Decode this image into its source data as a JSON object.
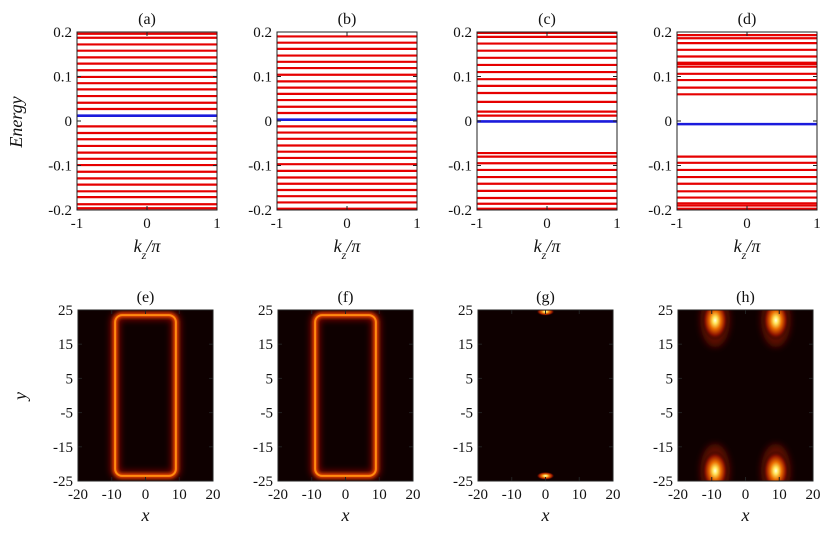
{
  "figure": {
    "ylabel_top": "Energy",
    "ylabel_bottom": "y"
  },
  "chart_data": [
    {
      "type": "line",
      "label": "(a)",
      "xlabel": "k_z/π",
      "xlim": [
        -1,
        1
      ],
      "ylim": [
        -0.2,
        0.2
      ],
      "xticks": [
        -1,
        0,
        1
      ],
      "yticks": [
        -0.2,
        -0.1,
        0,
        0.1,
        0.2
      ],
      "xtick_labels": [
        "-1",
        "0",
        "1"
      ],
      "ytick_labels": [
        "-0.2",
        "-0.1",
        "0",
        "0.1",
        "0.2"
      ],
      "bands_red": [
        -0.196,
        -0.187,
        -0.171,
        -0.158,
        -0.143,
        -0.129,
        -0.114,
        -0.099,
        -0.085,
        -0.071,
        -0.056,
        -0.041,
        -0.027,
        -0.012,
        0.027,
        0.041,
        0.056,
        0.071,
        0.085,
        0.099,
        0.114,
        0.129,
        0.143,
        0.158,
        0.172,
        0.187,
        0.196
      ],
      "bands_blue": [
        0.012
      ]
    },
    {
      "type": "line",
      "label": "(b)",
      "xlabel": "k_z/π",
      "xlim": [
        -1,
        1
      ],
      "ylim": [
        -0.2,
        0.2
      ],
      "xticks": [
        -1,
        0,
        1
      ],
      "yticks": [
        -0.2,
        -0.1,
        0,
        0.1,
        0.2
      ],
      "xtick_labels": [
        "-1",
        "0",
        "1"
      ],
      "ytick_labels": [
        "-0.2",
        "-0.1",
        "0",
        "0.1",
        "0.2"
      ],
      "bands_red": [
        -0.197,
        -0.183,
        -0.169,
        -0.155,
        -0.141,
        -0.127,
        -0.112,
        -0.097,
        -0.083,
        -0.069,
        -0.055,
        -0.04,
        -0.026,
        -0.012,
        0.018,
        0.032,
        0.047,
        0.061,
        0.075,
        0.089,
        0.104,
        0.119,
        0.133,
        0.147,
        0.162,
        0.176,
        0.19
      ],
      "bands_blue": [
        0.003
      ]
    },
    {
      "type": "line",
      "label": "(c)",
      "xlabel": "k_z/π",
      "xlim": [
        -1,
        1
      ],
      "ylim": [
        -0.2,
        0.2
      ],
      "xticks": [
        -1,
        0,
        1
      ],
      "yticks": [
        -0.2,
        -0.1,
        0,
        0.1,
        0.2
      ],
      "xtick_labels": [
        "-1",
        "0",
        "1"
      ],
      "ytick_labels": [
        "-0.2",
        "-0.1",
        "0",
        "0.1",
        "0.2"
      ],
      "bands_red": [
        -0.197,
        -0.186,
        -0.173,
        -0.157,
        -0.141,
        -0.126,
        -0.11,
        -0.095,
        -0.08,
        -0.072,
        0.012,
        0.021,
        0.043,
        0.063,
        0.079,
        0.094,
        0.11,
        0.126,
        0.142,
        0.158,
        0.174,
        0.189,
        0.198
      ],
      "bands_blue": [
        -0.001
      ]
    },
    {
      "type": "line",
      "label": "(d)",
      "xlabel": "k_z/π",
      "xlim": [
        -1,
        1
      ],
      "ylim": [
        -0.2,
        0.2
      ],
      "xticks": [
        -1,
        0,
        1
      ],
      "yticks": [
        -0.2,
        -0.1,
        0,
        0.1,
        0.2
      ],
      "xtick_labels": [
        "-1",
        "0",
        "1"
      ],
      "ytick_labels": [
        "-0.2",
        "-0.1",
        "0",
        "0.1",
        "0.2"
      ],
      "bands_red": [
        -0.197,
        -0.19,
        -0.185,
        -0.172,
        -0.158,
        -0.141,
        -0.126,
        -0.11,
        -0.094,
        -0.08,
        0.06,
        0.075,
        0.092,
        0.106,
        0.122,
        0.128,
        0.131,
        0.145,
        0.16,
        0.175,
        0.186,
        0.193
      ],
      "bands_blue": [
        -0.007
      ]
    },
    {
      "type": "heatmap",
      "label": "(e)",
      "xlabel": "x",
      "xlim": [
        -20,
        20
      ],
      "ylim": [
        -25,
        25
      ],
      "xticks": [
        -20,
        -10,
        0,
        10,
        20
      ],
      "yticks": [
        -25,
        -15,
        -5,
        5,
        15,
        25
      ],
      "xtick_labels": [
        "-20",
        "-10",
        "0",
        "10",
        "20"
      ],
      "ytick_labels": [
        "-25",
        "-15",
        "-5",
        "5",
        "15",
        "25"
      ],
      "distribution": "rectangular edge loop",
      "edge_x": 9,
      "edge_y": 23.5
    },
    {
      "type": "heatmap",
      "label": "(f)",
      "xlabel": "x",
      "xlim": [
        -20,
        20
      ],
      "ylim": [
        -25,
        25
      ],
      "xticks": [
        -20,
        -10,
        0,
        10,
        20
      ],
      "yticks": [
        -25,
        -15,
        -5,
        5,
        15,
        25
      ],
      "xtick_labels": [
        "-20",
        "-10",
        "0",
        "10",
        "20"
      ],
      "ytick_labels": [
        "-25",
        "-15",
        "-5",
        "5",
        "15",
        "25"
      ],
      "distribution": "rectangular edge loop",
      "edge_x": 9,
      "edge_y": 23.5
    },
    {
      "type": "heatmap",
      "label": "(g)",
      "xlabel": "x",
      "xlim": [
        -20,
        20
      ],
      "ylim": [
        -25,
        25
      ],
      "xticks": [
        -20,
        -10,
        0,
        10,
        20
      ],
      "yticks": [
        -25,
        -15,
        -5,
        5,
        15,
        25
      ],
      "xtick_labels": [
        "-20",
        "-10",
        "0",
        "10",
        "20"
      ],
      "ytick_labels": [
        "-25",
        "-15",
        "-5",
        "5",
        "15",
        "25"
      ],
      "distribution": "hinge spots",
      "spots": [
        [
          0,
          24.5
        ],
        [
          0,
          -23.5
        ]
      ]
    },
    {
      "type": "heatmap",
      "label": "(h)",
      "xlabel": "x",
      "xlim": [
        -20,
        20
      ],
      "ylim": [
        -25,
        25
      ],
      "xticks": [
        -20,
        -10,
        0,
        10,
        20
      ],
      "yticks": [
        -25,
        -15,
        -5,
        5,
        15,
        25
      ],
      "xtick_labels": [
        "-20",
        "-10",
        "0",
        "10",
        "20"
      ],
      "ytick_labels": [
        "-25",
        "-15",
        "-5",
        "5",
        "15",
        "25"
      ],
      "distribution": "corner spots",
      "spots": [
        [
          -9,
          22
        ],
        [
          9,
          22
        ],
        [
          -9,
          -22
        ],
        [
          9,
          -22
        ]
      ]
    }
  ]
}
